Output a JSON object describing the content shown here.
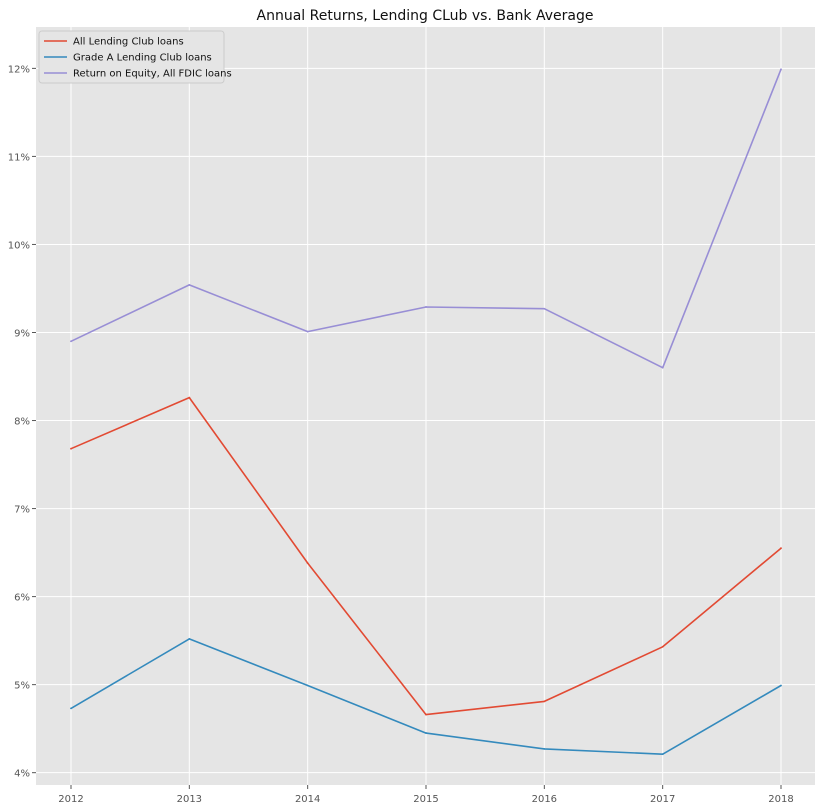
{
  "chart_data": {
    "type": "line",
    "title": "Annual Returns, Lending CLub vs. Bank Average",
    "xlabel": "",
    "ylabel": "",
    "categories": [
      "2012",
      "2013",
      "2014",
      "2015",
      "2016",
      "2017",
      "2018"
    ],
    "y_ticks": [
      4,
      5,
      6,
      7,
      8,
      9,
      10,
      11,
      12
    ],
    "y_tick_labels": [
      "4%",
      "5%",
      "6%",
      "7%",
      "8%",
      "9%",
      "10%",
      "11%",
      "12%"
    ],
    "ylim": [
      3.86,
      12.47
    ],
    "grid": true,
    "legend_position": "top-left",
    "series": [
      {
        "name": "All Lending Club loans",
        "color": "#E24A33",
        "values": [
          7.68,
          8.26,
          6.38,
          4.66,
          4.81,
          5.43,
          6.55
        ]
      },
      {
        "name": "Grade A Lending Club loans",
        "color": "#348ABD",
        "values": [
          4.73,
          5.52,
          4.99,
          4.45,
          4.27,
          4.21,
          4.99
        ]
      },
      {
        "name": "Return on Equity, All FDIC loans",
        "color": "#988ED5",
        "values": [
          8.9,
          9.54,
          9.01,
          9.29,
          9.27,
          8.6,
          11.99
        ]
      }
    ]
  }
}
